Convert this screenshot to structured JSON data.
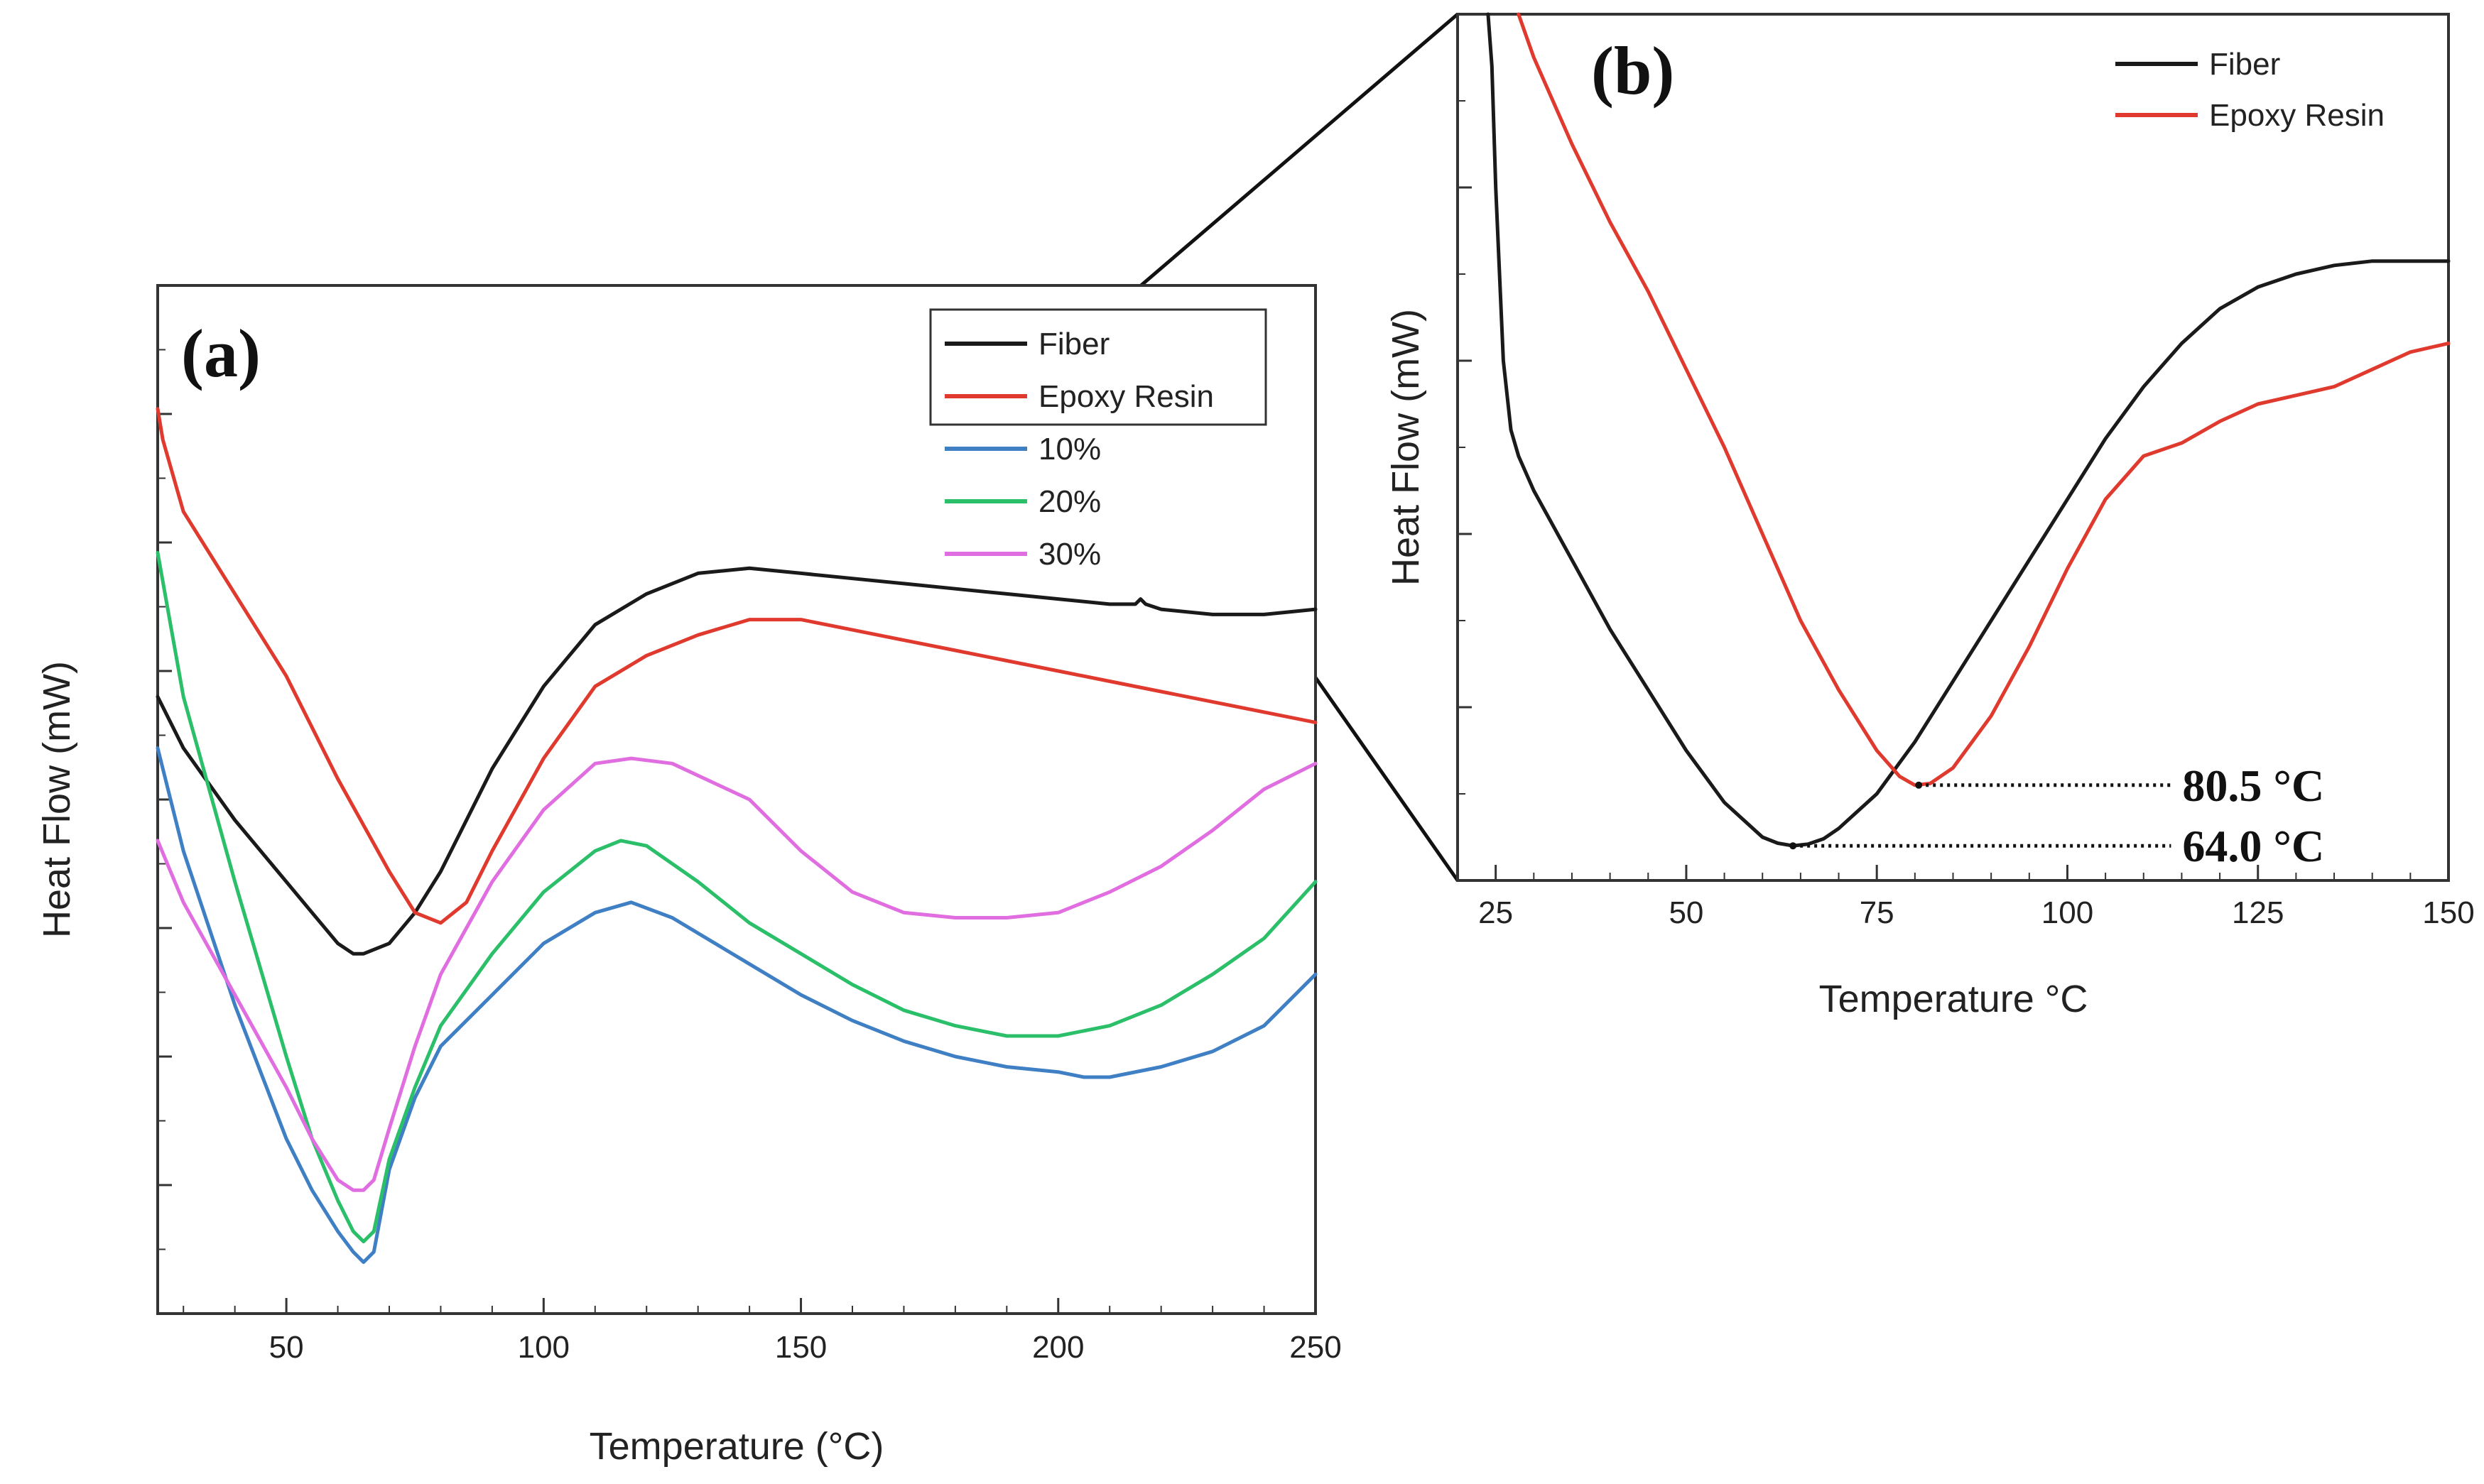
{
  "chart_data": [
    {
      "type": "line",
      "panel_label": "(a)",
      "xlabel": "Temperature (°C)",
      "ylabel": "Heat Flow (mW)",
      "xlim": [
        25,
        250
      ],
      "ylim": [
        0,
        100
      ],
      "xticks": [
        50,
        100,
        150,
        200,
        250
      ],
      "yticks_labeled": false,
      "legend_position": "top-right",
      "series": [
        {
          "name": "Fiber",
          "color": "#1a1a1a",
          "x": [
            25,
            30,
            40,
            50,
            55,
            60,
            63,
            65,
            70,
            75,
            80,
            85,
            90,
            100,
            110,
            120,
            130,
            140,
            150,
            160,
            170,
            180,
            190,
            200,
            210,
            215,
            216,
            217,
            220,
            230,
            240,
            250
          ],
          "y": [
            60,
            55,
            48,
            42,
            39,
            36,
            35,
            35,
            36,
            39,
            43,
            48,
            53,
            61,
            67,
            70,
            72,
            72.5,
            72,
            71.5,
            71,
            70.5,
            70,
            69.5,
            69,
            69,
            69.5,
            69,
            68.5,
            68,
            68,
            68.5
          ]
        },
        {
          "name": "Epoxy Resin",
          "color": "#e03a2f",
          "x": [
            25,
            26,
            30,
            40,
            50,
            60,
            70,
            75,
            80,
            85,
            90,
            100,
            110,
            120,
            130,
            140,
            150,
            160,
            170,
            180,
            190,
            200,
            210,
            220,
            230,
            240,
            250
          ],
          "y": [
            88,
            85,
            78,
            70,
            62,
            52,
            43,
            39,
            38,
            40,
            45,
            54,
            61,
            64,
            66,
            67.5,
            67.5,
            66.5,
            65.5,
            64.5,
            63.5,
            62.5,
            61.5,
            60.5,
            59.5,
            58.5,
            57.5
          ]
        },
        {
          "name": "10%",
          "color": "#3f7fc4",
          "x": [
            25,
            30,
            40,
            50,
            55,
            60,
            63,
            65,
            67,
            70,
            75,
            80,
            90,
            100,
            110,
            117,
            125,
            140,
            150,
            160,
            170,
            180,
            190,
            200,
            205,
            210,
            220,
            230,
            240,
            250
          ],
          "y": [
            55,
            45,
            30,
            17,
            12,
            8,
            6,
            5,
            6,
            14,
            21,
            26,
            31,
            36,
            39,
            40,
            38.5,
            34,
            31,
            28.5,
            26.5,
            25,
            24,
            23.5,
            23,
            23,
            24,
            25.5,
            28,
            33
          ]
        },
        {
          "name": "20%",
          "color": "#2bbf6a",
          "x": [
            25,
            30,
            40,
            50,
            55,
            60,
            63,
            65,
            67,
            70,
            75,
            80,
            90,
            100,
            110,
            115,
            120,
            130,
            140,
            150,
            160,
            170,
            180,
            190,
            200,
            210,
            220,
            230,
            240,
            250
          ],
          "y": [
            74,
            60,
            42,
            25,
            17,
            11,
            8,
            7,
            8,
            15,
            22,
            28,
            35,
            41,
            45,
            46,
            45.5,
            42,
            38,
            35,
            32,
            29.5,
            28,
            27,
            27,
            28,
            30,
            33,
            36.5,
            42
          ]
        },
        {
          "name": "30%",
          "color": "#e06ee0",
          "x": [
            25,
            30,
            40,
            50,
            55,
            60,
            63,
            65,
            67,
            70,
            75,
            80,
            90,
            100,
            110,
            117,
            125,
            140,
            150,
            160,
            170,
            180,
            190,
            200,
            210,
            220,
            230,
            240,
            250
          ],
          "y": [
            46,
            40,
            31,
            22,
            17,
            13,
            12,
            12,
            13,
            18,
            26,
            33,
            42,
            49,
            53.5,
            54,
            53.5,
            50,
            45,
            41,
            39,
            38.5,
            38.5,
            39,
            41,
            43.5,
            47,
            51,
            53.5
          ]
        }
      ]
    },
    {
      "type": "line",
      "panel_label": "(b)",
      "xlabel": "Temperature °C",
      "ylabel": "Heat Flow (mW)",
      "xlim": [
        20,
        150
      ],
      "ylim": [
        0,
        100
      ],
      "xticks": [
        25,
        50,
        75,
        100,
        125,
        150
      ],
      "yticks_labeled": false,
      "legend_position": "top-right",
      "series": [
        {
          "name": "Fiber",
          "color": "#1a1a1a",
          "x": [
            24,
            24.5,
            25,
            26,
            27,
            28,
            30,
            35,
            40,
            45,
            50,
            55,
            60,
            62,
            64,
            66,
            68,
            70,
            75,
            80,
            85,
            90,
            95,
            100,
            105,
            110,
            115,
            120,
            125,
            130,
            135,
            140,
            145,
            150
          ],
          "y": [
            100,
            94,
            80,
            60,
            52,
            49,
            45,
            37,
            29,
            22,
            15,
            9,
            5,
            4.3,
            4,
            4.2,
            4.8,
            6,
            10,
            16,
            23,
            30,
            37,
            44,
            51,
            57,
            62,
            66,
            68.5,
            70,
            71,
            71.5,
            71.5,
            71.5
          ]
        },
        {
          "name": "Epoxy Resin",
          "color": "#e03a2f",
          "x": [
            28,
            30,
            35,
            40,
            45,
            50,
            55,
            60,
            65,
            70,
            75,
            78,
            80,
            82,
            85,
            90,
            95,
            100,
            105,
            110,
            115,
            120,
            125,
            130,
            135,
            140,
            145,
            150
          ],
          "y": [
            100,
            95,
            85,
            76,
            68,
            59,
            50,
            40,
            30,
            22,
            15,
            12,
            11,
            11.2,
            13,
            19,
            27,
            36,
            44,
            49,
            50.5,
            53,
            55,
            56,
            57,
            59,
            61,
            62
          ]
        }
      ],
      "annotations": [
        {
          "label": "80.5 °C",
          "x": 80.5,
          "y": 11
        },
        {
          "label": "64.0 °C",
          "x": 64.0,
          "y": 4
        }
      ]
    }
  ]
}
